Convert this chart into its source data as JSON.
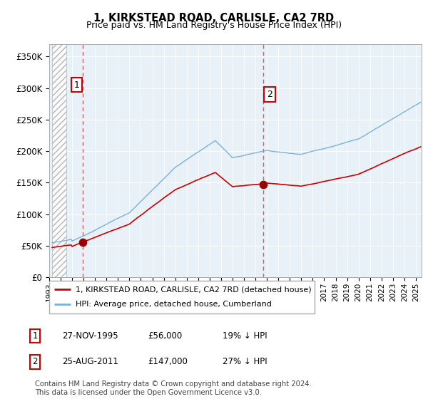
{
  "title": "1, KIRKSTEAD ROAD, CARLISLE, CA2 7RD",
  "subtitle": "Price paid vs. HM Land Registry's House Price Index (HPI)",
  "ylabel_ticks": [
    "£0",
    "£50K",
    "£100K",
    "£150K",
    "£200K",
    "£250K",
    "£300K",
    "£350K"
  ],
  "ytick_values": [
    0,
    50000,
    100000,
    150000,
    200000,
    250000,
    300000,
    350000
  ],
  "ylim": [
    0,
    370000
  ],
  "xlim_start": 1993.25,
  "xlim_end": 2025.5,
  "sale1_date": 1995.91,
  "sale1_price": 56000,
  "sale2_date": 2011.65,
  "sale2_price": 147000,
  "hpi_color": "#7ab3d9",
  "price_color": "#cc0000",
  "vline_color": "#d06060",
  "chart_bg": "#e8f0f8",
  "legend_label1": "1, KIRKSTEAD ROAD, CARLISLE, CA2 7RD (detached house)",
  "legend_label2": "HPI: Average price, detached house, Cumberland",
  "table_row1": [
    "1",
    "27-NOV-1995",
    "£56,000",
    "19% ↓ HPI"
  ],
  "table_row2": [
    "2",
    "25-AUG-2011",
    "£147,000",
    "27% ↓ HPI"
  ],
  "footnote": "Contains HM Land Registry data © Crown copyright and database right 2024.\nThis data is licensed under the Open Government Licence v3.0.",
  "marker_color": "#990000"
}
